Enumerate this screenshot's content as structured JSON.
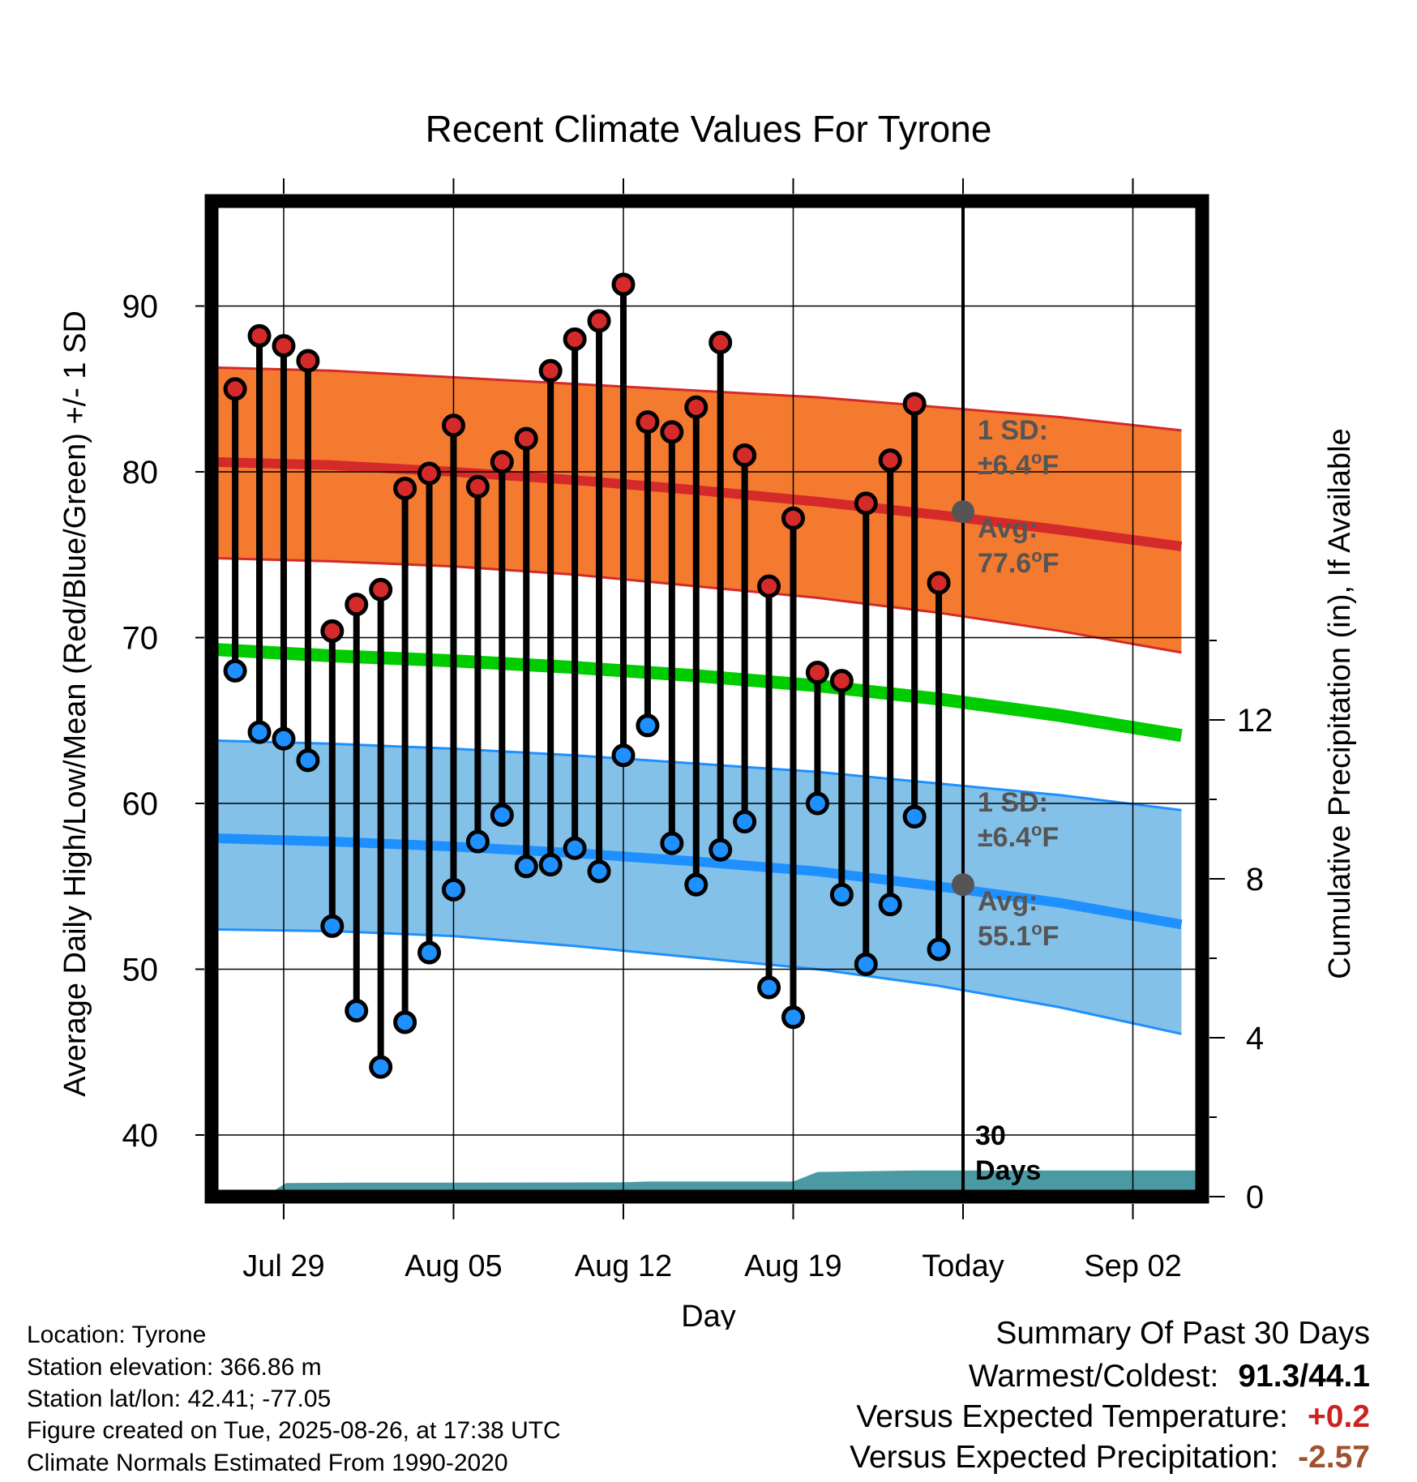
{
  "chart_data": {
    "type": "line",
    "title": "Recent Climate Values For Tyrone",
    "xlabel": "Day",
    "ylabel": "Average Daily High/Low/Mean (Red/Blue/Green) +/- 1 SD",
    "y2label": "Cumulative Precipitation (in), If Available",
    "ylim": [
      36,
      96
    ],
    "y_ticks": [
      40,
      50,
      60,
      70,
      80,
      90
    ],
    "y2lim": [
      0,
      20
    ],
    "y2_ticks": [
      0,
      4,
      8,
      12
    ],
    "x_range_days": [
      -33.7,
      10
    ],
    "x_ticks": [
      {
        "day": -28,
        "label": "Jul 29"
      },
      {
        "day": -21,
        "label": "Aug 05"
      },
      {
        "day": -14,
        "label": "Aug 12"
      },
      {
        "day": -7,
        "label": "Aug 19"
      },
      {
        "day": 0,
        "label": "Today"
      },
      {
        "day": 7,
        "label": "Sep 02"
      }
    ],
    "grid": true,
    "days_label_value": "30",
    "days_label_unit": "Days",
    "daily": {
      "dates": [
        "Jul 27",
        "Jul 28",
        "Jul 29",
        "Jul 30",
        "Jul 31",
        "Aug 01",
        "Aug 02",
        "Aug 03",
        "Aug 04",
        "Aug 05",
        "Aug 06",
        "Aug 07",
        "Aug 08",
        "Aug 09",
        "Aug 10",
        "Aug 11",
        "Aug 12",
        "Aug 13",
        "Aug 14",
        "Aug 15",
        "Aug 16",
        "Aug 17",
        "Aug 18",
        "Aug 19",
        "Aug 20",
        "Aug 21",
        "Aug 22",
        "Aug 23",
        "Aug 24",
        "Aug 25"
      ],
      "highs": [
        85.0,
        88.2,
        87.6,
        86.7,
        70.4,
        72.0,
        72.9,
        79.0,
        79.9,
        82.8,
        79.1,
        80.6,
        82.0,
        86.1,
        88.0,
        89.1,
        91.3,
        83.0,
        82.4,
        83.9,
        87.8,
        81.0,
        73.1,
        77.2,
        67.9,
        67.4,
        78.1,
        80.7,
        84.1,
        73.3
      ],
      "lows": [
        68.0,
        64.3,
        63.9,
        62.6,
        52.6,
        47.5,
        44.1,
        46.8,
        51.0,
        54.8,
        57.7,
        59.3,
        56.2,
        56.3,
        57.3,
        55.9,
        62.9,
        64.7,
        57.6,
        55.1,
        57.2,
        58.9,
        48.9,
        47.1,
        60.0,
        54.5,
        50.3,
        53.9,
        59.2,
        51.2
      ]
    },
    "normals": {
      "days": [
        -31,
        -26,
        -21,
        -16,
        -11,
        -6,
        -1,
        4,
        9
      ],
      "high_avg": [
        80.6,
        80.4,
        80.0,
        79.5,
        78.9,
        78.2,
        77.4,
        76.5,
        75.5
      ],
      "high_sd_upper": [
        86.3,
        86.1,
        85.7,
        85.3,
        84.9,
        84.5,
        83.9,
        83.3,
        82.5
      ],
      "high_sd_lower": [
        74.8,
        74.6,
        74.3,
        73.8,
        73.1,
        72.4,
        71.5,
        70.4,
        69.1
      ],
      "mean_avg": [
        69.3,
        68.9,
        68.6,
        68.2,
        67.7,
        67.1,
        66.3,
        65.3,
        64.1
      ],
      "low_avg": [
        57.9,
        57.7,
        57.4,
        57.0,
        56.5,
        55.9,
        55.0,
        54.0,
        52.7
      ],
      "low_sd_upper": [
        63.8,
        63.6,
        63.3,
        62.9,
        62.4,
        61.9,
        61.2,
        60.5,
        59.6
      ],
      "low_sd_lower": [
        52.4,
        52.3,
        52.0,
        51.4,
        50.7,
        50.0,
        49.0,
        47.7,
        46.1
      ]
    },
    "cumulative_precip": {
      "days": [
        -28.8,
        -27.9,
        -25,
        -21,
        -14,
        -13,
        -7,
        -6,
        -2,
        10
      ],
      "values": [
        0,
        0.34,
        0.35,
        0.35,
        0.36,
        0.38,
        0.38,
        0.62,
        0.66,
        0.66
      ]
    },
    "annotations": {
      "high_sd_label": "1 SD:",
      "high_sd_value": "±6.4",
      "high_avg_label": "Avg:",
      "high_avg_value": "77.6",
      "low_sd_label": "1 SD:",
      "low_sd_value": "±6.4",
      "low_avg_label": "Avg:",
      "low_avg_value": "55.1",
      "degree_symbol": "o",
      "unit_letter": "F"
    }
  },
  "colors": {
    "high_band": "#f47a30",
    "high_line": "#d42a2a",
    "high_marker": "#d42a2a",
    "low_band": "#84c1e8",
    "low_line": "#1e90ff",
    "low_marker": "#1e90ff",
    "mean_line": "#00cc00",
    "precip_fill": "#4a9aa4",
    "annotation_text": "#555555",
    "positive_anomaly": "#cc2222",
    "negative_anomaly": "#a0522d"
  },
  "footer": {
    "location": "Location: Tyrone",
    "elevation": "Station elevation: 366.86 m",
    "latlon": "Station lat/lon: 42.41; -77.05",
    "created": "Figure created on Tue, 2025-08-26, at 17:38 UTC",
    "normals": "Climate Normals Estimated From 1990-2020"
  },
  "summary": {
    "title": "Summary Of Past 30 Days",
    "warmest_coldest_label": "Warmest/Coldest:",
    "warmest_coldest_value": "91.3/44.1",
    "temp_label": "Versus Expected Temperature:",
    "temp_value": "+0.2",
    "precip_label": "Versus Expected Precipitation:",
    "precip_value": "-2.57"
  }
}
